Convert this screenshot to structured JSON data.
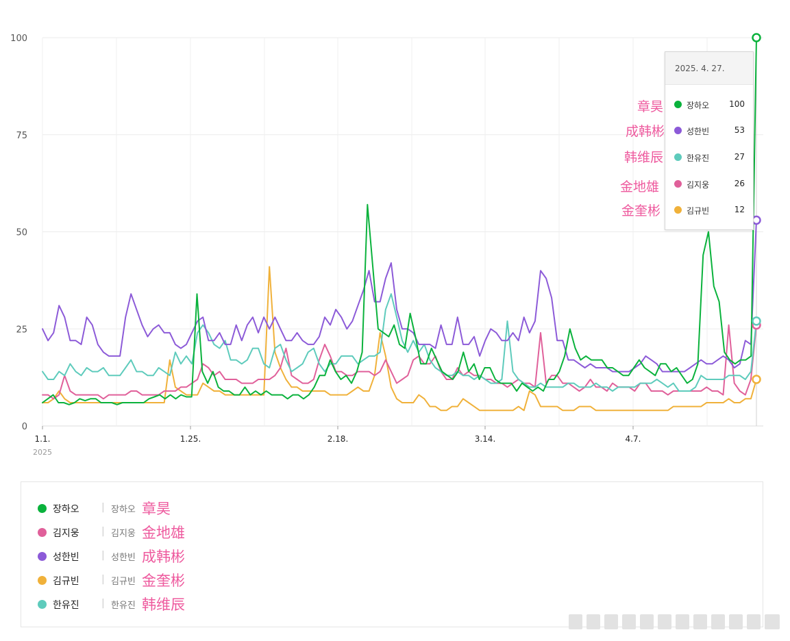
{
  "chart_data": {
    "type": "line",
    "x_labels": [
      "1.1.",
      "1.25.",
      "2.18.",
      "3.14.",
      "4.7."
    ],
    "x_sublabel": "2025",
    "y_ticks": [
      0,
      25,
      50,
      75,
      100
    ],
    "ylim": [
      0,
      100
    ],
    "grid": true,
    "series": [
      {
        "name": "장하오",
        "color": "#0ab23c",
        "values": [
          6,
          7,
          8,
          6,
          6,
          5.5,
          6,
          7,
          6.5,
          7,
          7,
          6,
          6,
          6,
          5.5,
          6,
          6,
          6,
          6,
          6,
          7,
          7.5,
          8,
          7,
          8,
          7,
          8,
          7.5,
          7.5,
          34,
          14,
          11,
          14,
          10,
          9,
          9,
          8,
          8,
          10,
          8,
          9,
          8,
          9,
          8,
          8,
          8,
          7,
          8,
          8,
          7,
          8,
          10,
          13,
          13,
          17,
          14,
          12,
          13,
          11,
          14,
          19,
          57,
          41,
          25,
          24,
          23,
          26,
          21,
          20,
          29,
          23,
          16,
          16,
          20,
          17,
          14,
          13,
          12,
          14,
          19,
          14,
          16,
          12,
          15,
          15,
          12,
          11,
          11,
          11,
          9,
          11,
          10,
          9,
          10,
          9,
          12,
          12,
          14,
          18,
          25,
          20,
          17,
          18,
          17,
          17,
          17,
          15,
          15,
          14,
          13,
          13,
          15,
          17,
          15,
          14,
          13,
          16,
          16,
          14,
          15,
          13,
          11,
          12,
          16,
          44,
          50,
          36,
          32,
          19,
          17,
          16,
          17,
          17,
          18,
          100
        ]
      },
      {
        "name": "성한빈",
        "color": "#8c5ad8",
        "values": [
          25,
          22,
          24,
          31,
          28,
          22,
          22,
          21,
          28,
          26,
          21,
          19,
          18,
          18,
          18,
          28,
          34,
          30,
          26,
          23,
          25,
          26,
          24,
          24,
          21,
          20,
          21,
          24,
          27,
          28,
          22,
          22,
          24,
          21,
          21,
          26,
          22,
          26,
          28,
          24,
          28,
          25,
          28,
          25,
          22,
          22,
          24,
          22,
          21,
          21,
          23,
          28,
          26,
          30,
          28,
          25,
          27,
          31,
          35,
          40,
          32,
          32,
          38,
          42,
          30,
          25,
          25,
          24,
          21,
          21,
          21,
          20,
          26,
          21,
          21,
          28,
          21,
          21,
          23,
          18,
          22,
          25,
          24,
          22,
          22,
          24,
          22,
          28,
          24,
          27,
          40,
          38,
          33,
          22,
          22,
          17,
          17,
          16,
          15,
          16,
          15,
          15,
          15,
          14,
          14,
          14,
          14,
          15,
          16,
          18,
          17,
          16,
          14,
          14,
          14,
          14,
          14,
          15,
          16,
          17,
          16,
          16,
          17,
          18,
          17,
          15,
          16,
          22,
          21,
          53
        ]
      },
      {
        "name": "한유진",
        "color": "#5ecbbc",
        "values": [
          14,
          12,
          12,
          14,
          13,
          16,
          14,
          13,
          15,
          14,
          14,
          15,
          13,
          13,
          13,
          15,
          17,
          14,
          14,
          13,
          13,
          15,
          14,
          13,
          19,
          16,
          18,
          16,
          24,
          26,
          24,
          21,
          20,
          22,
          17,
          17,
          16,
          17,
          20,
          20,
          16,
          15,
          20,
          21,
          17,
          14,
          15,
          16,
          19,
          20,
          16,
          14,
          16,
          16,
          18,
          18,
          18,
          16,
          17,
          18,
          18,
          19,
          30,
          34,
          28,
          22,
          19,
          22,
          19,
          21,
          17,
          15,
          14,
          13,
          13,
          14,
          13,
          13,
          12,
          13,
          12,
          11,
          11,
          12,
          27,
          14,
          12,
          11,
          10,
          10,
          11,
          10,
          10,
          10,
          10,
          11,
          11,
          10,
          10,
          10,
          11,
          10,
          10,
          9,
          10,
          10,
          10,
          10,
          11,
          11,
          11,
          12,
          11,
          10,
          11,
          9,
          9,
          9,
          10,
          13,
          12,
          12,
          12,
          12,
          13,
          13,
          13,
          12,
          14,
          27
        ]
      },
      {
        "name": "김지웅",
        "color": "#e0609a",
        "values": [
          8,
          8,
          7,
          8,
          13,
          9,
          8,
          8,
          8,
          8,
          8,
          7,
          8,
          8,
          8,
          8,
          9,
          9,
          8,
          8,
          8,
          8,
          9,
          9,
          9,
          10,
          10,
          11,
          12,
          16,
          15,
          13,
          14,
          12,
          12,
          12,
          11,
          11,
          11,
          12,
          12,
          12,
          13,
          15,
          20,
          13,
          12,
          11,
          11,
          12,
          17,
          21,
          18,
          14,
          14,
          13,
          13,
          14,
          14,
          14,
          13,
          14,
          17,
          14,
          11,
          12,
          13,
          17,
          18,
          16,
          16,
          18,
          14,
          12,
          12,
          15,
          13,
          14,
          13,
          13,
          12,
          12,
          11,
          11,
          10,
          11,
          12,
          11,
          11,
          10,
          24,
          11,
          13,
          13,
          11,
          11,
          10,
          9,
          10,
          12,
          10,
          10,
          9,
          11,
          10,
          10,
          10,
          9,
          11,
          11,
          9,
          9,
          9,
          8,
          9,
          9,
          9,
          9,
          9,
          9,
          10,
          9,
          9,
          8,
          26,
          11,
          9,
          8,
          12,
          26
        ]
      },
      {
        "name": "김규빈",
        "color": "#f0b13a",
        "values": [
          6,
          6,
          7,
          9,
          7,
          6,
          6,
          6,
          6,
          6,
          6,
          6,
          6,
          6,
          6,
          6,
          6,
          6,
          6,
          6,
          6,
          6,
          6,
          17,
          10,
          9,
          8,
          8,
          8,
          11,
          10,
          9,
          9,
          8,
          8,
          8,
          8,
          8,
          8,
          8,
          8,
          41,
          19,
          15,
          12,
          10,
          10,
          9,
          9,
          9,
          9,
          9,
          8,
          8,
          8,
          8,
          9,
          10,
          9,
          9,
          13,
          24,
          18,
          10,
          7,
          6,
          6,
          6,
          8,
          7,
          5,
          5,
          4,
          4,
          5,
          5,
          7,
          6,
          5,
          4,
          4,
          4,
          4,
          4,
          4,
          4,
          5,
          4,
          9,
          8,
          5,
          5,
          5,
          5,
          4,
          4,
          4,
          5,
          5,
          5,
          4,
          4,
          4,
          4,
          4,
          4,
          4,
          4,
          4,
          4,
          4,
          4,
          4,
          4,
          5,
          5,
          5,
          5,
          5,
          5,
          6,
          6,
          6,
          6,
          7,
          6,
          6,
          7,
          7,
          12
        ]
      }
    ],
    "tooltip": {
      "date": "2025. 4. 27.",
      "rows": [
        {
          "name": "장하오",
          "value": "100",
          "color": "#0ab23c"
        },
        {
          "name": "성한빈",
          "value": "53",
          "color": "#8c5ad8"
        },
        {
          "name": "한유진",
          "value": "27",
          "color": "#5ecbbc"
        },
        {
          "name": "김지웅",
          "value": "26",
          "color": "#e0609a"
        },
        {
          "name": "김규빈",
          "value": "12",
          "color": "#f0b13a"
        }
      ]
    },
    "annotations": [
      "章昊",
      "成韩彬",
      "韩维辰",
      "金地雄",
      "金奎彬"
    ],
    "legend": [
      {
        "name": "장하오",
        "alias": "장하오",
        "han": "章昊",
        "color": "#0ab23c"
      },
      {
        "name": "김지웅",
        "alias": "김지웅",
        "han": "金地雄",
        "color": "#e0609a"
      },
      {
        "name": "성한빈",
        "alias": "성한빈",
        "han": "成韩彬",
        "color": "#8c5ad8"
      },
      {
        "name": "김규빈",
        "alias": "김규빈",
        "han": "金奎彬",
        "color": "#f0b13a"
      },
      {
        "name": "한유진",
        "alias": "한유진",
        "han": "韩维辰",
        "color": "#5ecbbc"
      }
    ],
    "legend_separator": "|"
  }
}
